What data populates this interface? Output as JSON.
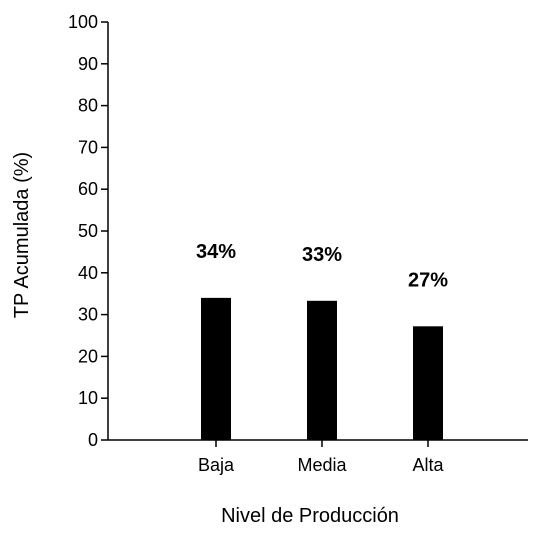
{
  "chart_data": {
    "type": "bar",
    "categories": [
      "Baja",
      "Media",
      "Alta"
    ],
    "values": [
      34,
      33.3,
      27.2
    ],
    "data_labels": [
      "34%",
      "33%",
      "27%"
    ],
    "title": "",
    "xlabel": "Nivel de Producción",
    "ylabel": "TP Acumulada (%)",
    "ylim": [
      0,
      100
    ],
    "yticks": [
      0,
      10,
      20,
      30,
      40,
      50,
      60,
      70,
      80,
      90,
      100
    ],
    "grid": false,
    "legend": "none",
    "bar_color": "#000000"
  }
}
